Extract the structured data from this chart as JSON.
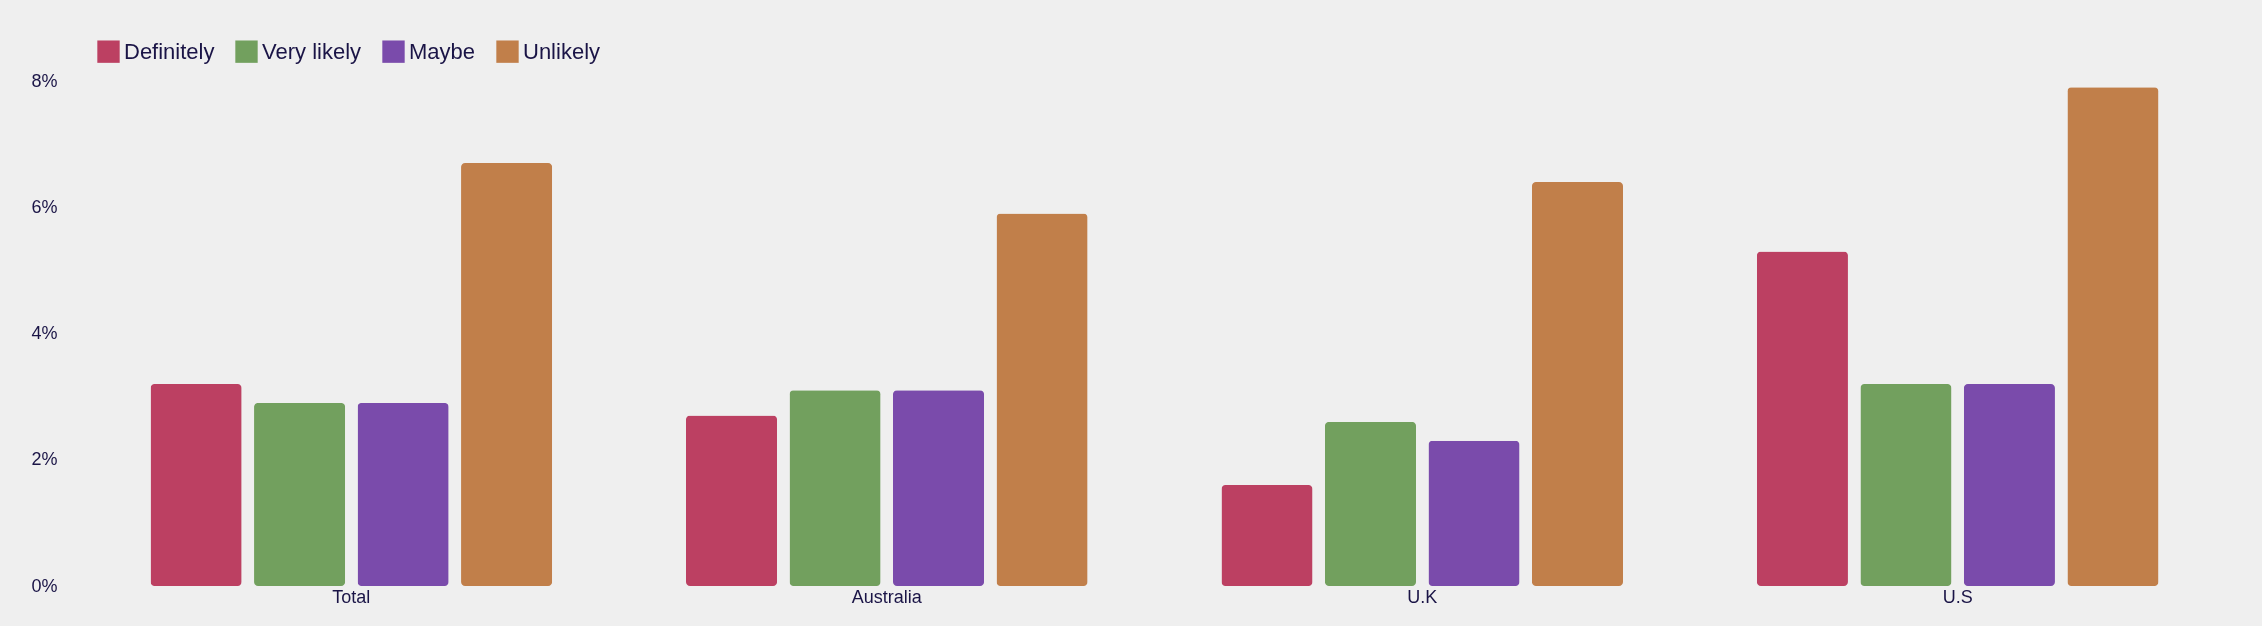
{
  "chart_data": {
    "type": "bar",
    "categories": [
      "Total",
      "Australia",
      "U.K",
      "U.S"
    ],
    "series": [
      {
        "name": "Definitely",
        "color": "#bc4062",
        "values": [
          3.2,
          2.7,
          1.6,
          5.3
        ]
      },
      {
        "name": "Very likely",
        "color": "#72a05e",
        "values": [
          2.9,
          3.1,
          2.6,
          3.2
        ]
      },
      {
        "name": "Maybe",
        "color": "#7a4bab",
        "values": [
          2.9,
          3.1,
          2.3,
          3.2
        ]
      },
      {
        "name": "Unlikely",
        "color": "#c17f4a",
        "values": [
          6.7,
          5.9,
          6.4,
          7.9
        ]
      }
    ],
    "ylim": [
      0,
      8
    ],
    "yticks": [
      {
        "value": 0,
        "label": "0%"
      },
      {
        "value": 2,
        "label": "2%"
      },
      {
        "value": 4,
        "label": "4%"
      },
      {
        "value": 6,
        "label": "6%"
      },
      {
        "value": 8,
        "label": "8%"
      }
    ],
    "grid": false,
    "legend": "top"
  }
}
